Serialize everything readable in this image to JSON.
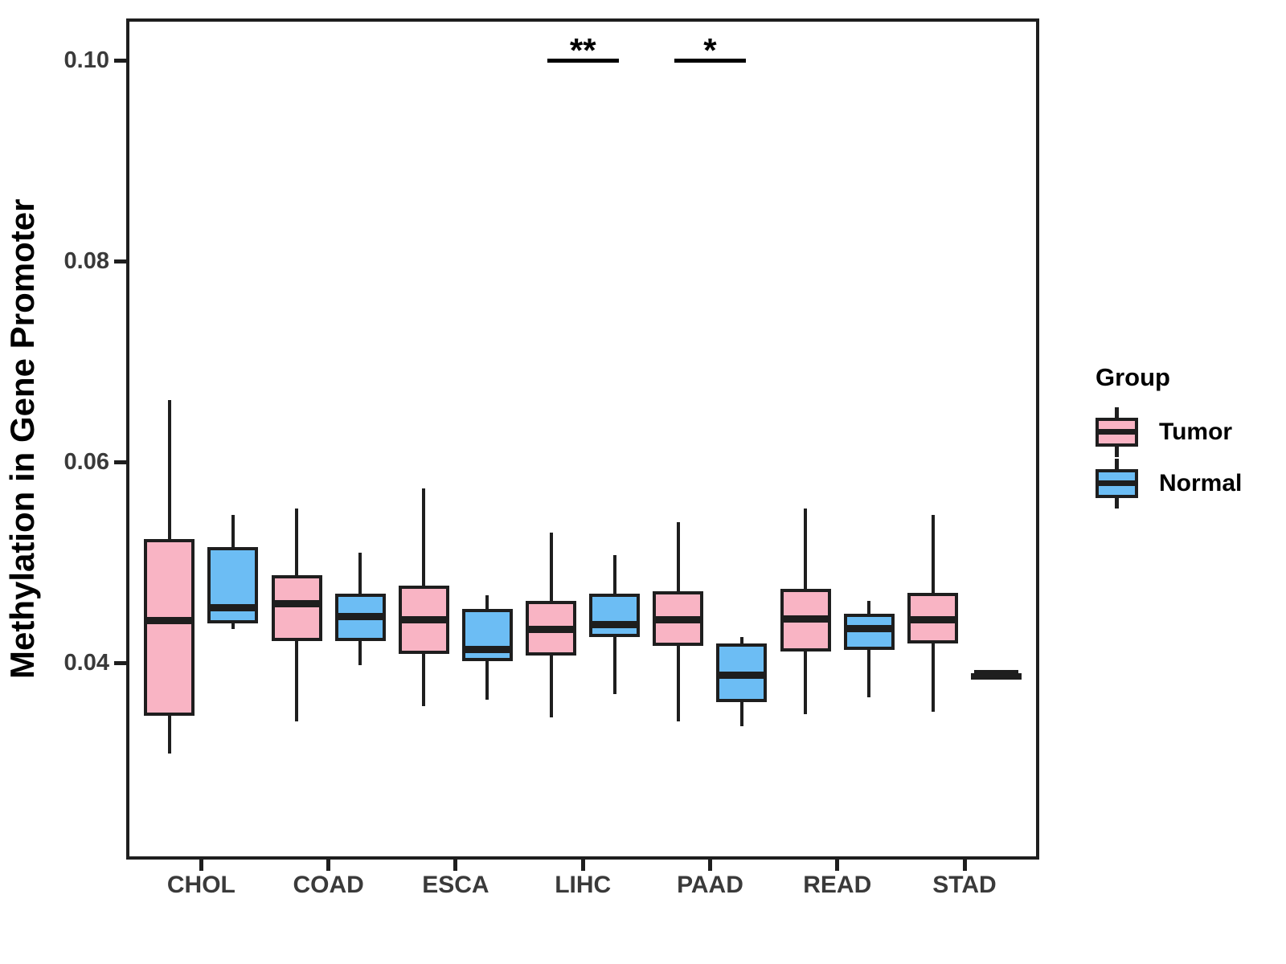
{
  "legend": {
    "title": "Group"
  },
  "colors": {
    "line": "#1e1e1e",
    "axis_text": "#3a3a3a",
    "title_text": "#000000",
    "tumor_fill": "#F9B4C4",
    "normal_fill": "#6CBDF4"
  },
  "chart_data": {
    "type": "boxplot",
    "title": "",
    "xlabel": "",
    "ylabel": "Methylation in Gene Promoter",
    "categories": [
      "CHOL",
      "COAD",
      "ESCA",
      "LIHC",
      "PAAD",
      "READ",
      "STAD"
    ],
    "ylim": [
      0.0204,
      0.1042
    ],
    "grid": false,
    "legend_position": "right",
    "y_ticks": [
      {
        "value": 0.04,
        "label": "0.04"
      },
      {
        "value": 0.06,
        "label": "0.06"
      },
      {
        "value": 0.08,
        "label": "0.08"
      },
      {
        "value": 0.1,
        "label": "0.10"
      }
    ],
    "series": [
      {
        "name": "Tumor",
        "color": "#F9B4C4",
        "boxes": [
          {
            "category": "CHOL",
            "min": 0.031,
            "q1": 0.0347,
            "median": 0.0442,
            "q3": 0.0523,
            "max": 0.0662
          },
          {
            "category": "COAD",
            "min": 0.0342,
            "q1": 0.0422,
            "median": 0.0459,
            "q3": 0.0487,
            "max": 0.0554
          },
          {
            "category": "ESCA",
            "min": 0.0357,
            "q1": 0.0409,
            "median": 0.0443,
            "q3": 0.0477,
            "max": 0.0574
          },
          {
            "category": "LIHC",
            "min": 0.0346,
            "q1": 0.0407,
            "median": 0.0433,
            "q3": 0.0462,
            "max": 0.053
          },
          {
            "category": "PAAD",
            "min": 0.0342,
            "q1": 0.0417,
            "median": 0.0443,
            "q3": 0.0471,
            "max": 0.054
          },
          {
            "category": "READ",
            "min": 0.0349,
            "q1": 0.0411,
            "median": 0.0444,
            "q3": 0.0474,
            "max": 0.0554
          },
          {
            "category": "STAD",
            "min": 0.0351,
            "q1": 0.0419,
            "median": 0.0443,
            "q3": 0.047,
            "max": 0.0547
          }
        ]
      },
      {
        "name": "Normal",
        "color": "#6CBDF4",
        "boxes": [
          {
            "category": "CHOL",
            "min": 0.0434,
            "q1": 0.0439,
            "median": 0.0455,
            "q3": 0.0515,
            "max": 0.0547
          },
          {
            "category": "COAD",
            "min": 0.0398,
            "q1": 0.0422,
            "median": 0.0446,
            "q3": 0.0469,
            "max": 0.051
          },
          {
            "category": "ESCA",
            "min": 0.0363,
            "q1": 0.0402,
            "median": 0.0413,
            "q3": 0.0454,
            "max": 0.0467
          },
          {
            "category": "LIHC",
            "min": 0.0369,
            "q1": 0.0426,
            "median": 0.0438,
            "q3": 0.0469,
            "max": 0.0507
          },
          {
            "category": "PAAD",
            "min": 0.0337,
            "q1": 0.0361,
            "median": 0.0388,
            "q3": 0.0419,
            "max": 0.0426
          },
          {
            "category": "READ",
            "min": 0.0366,
            "q1": 0.0413,
            "median": 0.0434,
            "q3": 0.0449,
            "max": 0.0462
          },
          {
            "category": "STAD",
            "min": 0.0387,
            "q1": 0.0388,
            "median": 0.0389,
            "q3": 0.039,
            "max": 0.0391
          }
        ]
      }
    ],
    "annotations": [
      {
        "category": "LIHC",
        "label": "**",
        "y_value": 0.1
      },
      {
        "category": "PAAD",
        "label": "*",
        "y_value": 0.1
      }
    ]
  }
}
